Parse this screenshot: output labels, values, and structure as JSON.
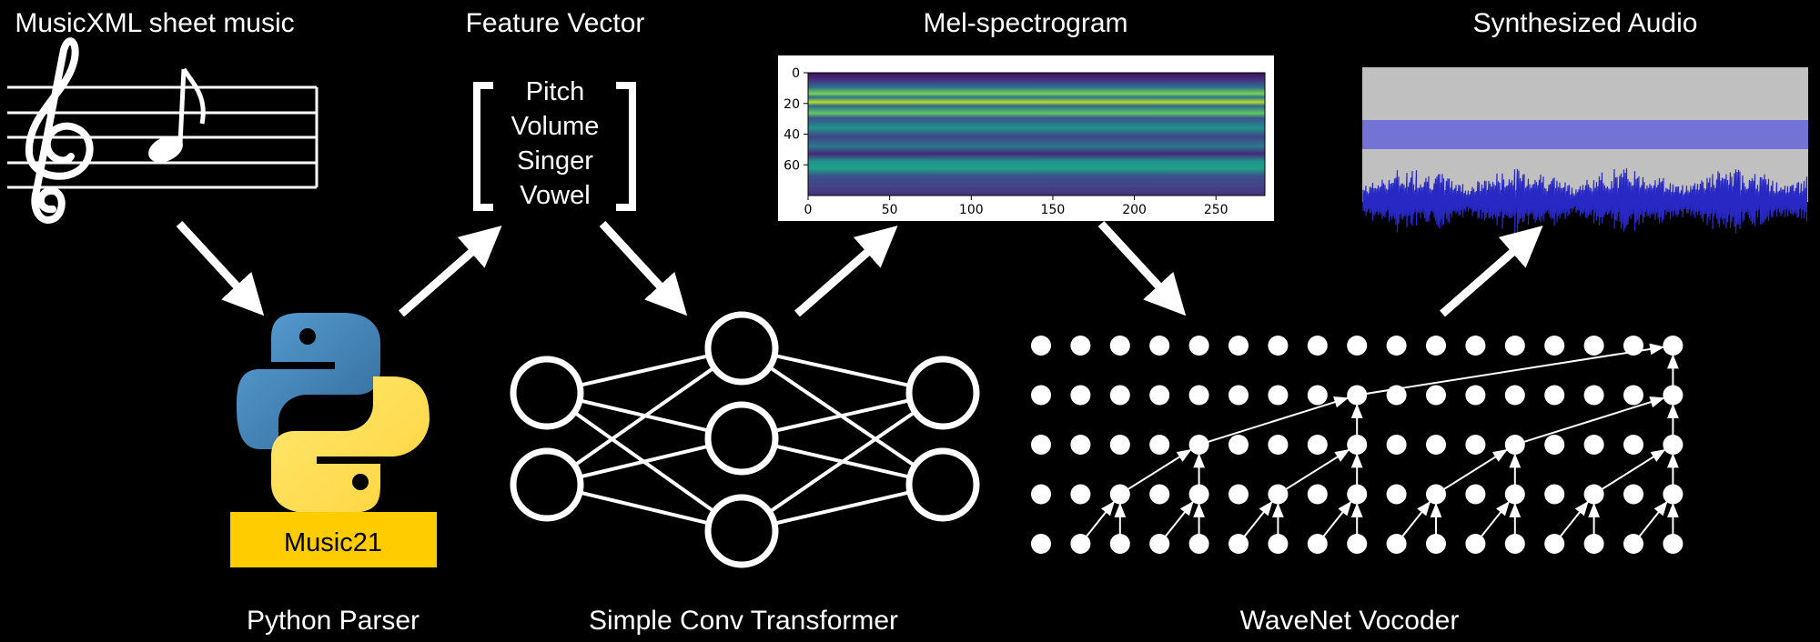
{
  "stages": {
    "sheet_music_label": "MusicXML sheet music",
    "feature_vector_label": "Feature Vector",
    "mel_label": "Mel-spectrogram",
    "audio_label": "Synthesized Audio",
    "parser_label": "Python Parser",
    "transformer_label": "Simple Conv Transformer",
    "vocoder_label": "WaveNet Vocoder"
  },
  "parser": {
    "badge": "Music21"
  },
  "feature_vector": {
    "items": [
      "Pitch",
      "Volume",
      "Singer",
      "Vowel"
    ]
  },
  "colors": {
    "python_blue": "#3b75a8",
    "python_yellow": "#ffd43b",
    "music21_badge": "#ffcc00",
    "waveform": "#3030c8",
    "waveform_bg": "#c0c0c0"
  },
  "chart_data": {
    "type": "heatmap",
    "x_ticks": [
      "0",
      "50",
      "100",
      "150",
      "200",
      "250"
    ],
    "y_ticks": [
      "0",
      "20",
      "40",
      "60"
    ],
    "xlim": [
      0,
      280
    ],
    "ylim": [
      80,
      0
    ],
    "colormap": "viridis"
  }
}
